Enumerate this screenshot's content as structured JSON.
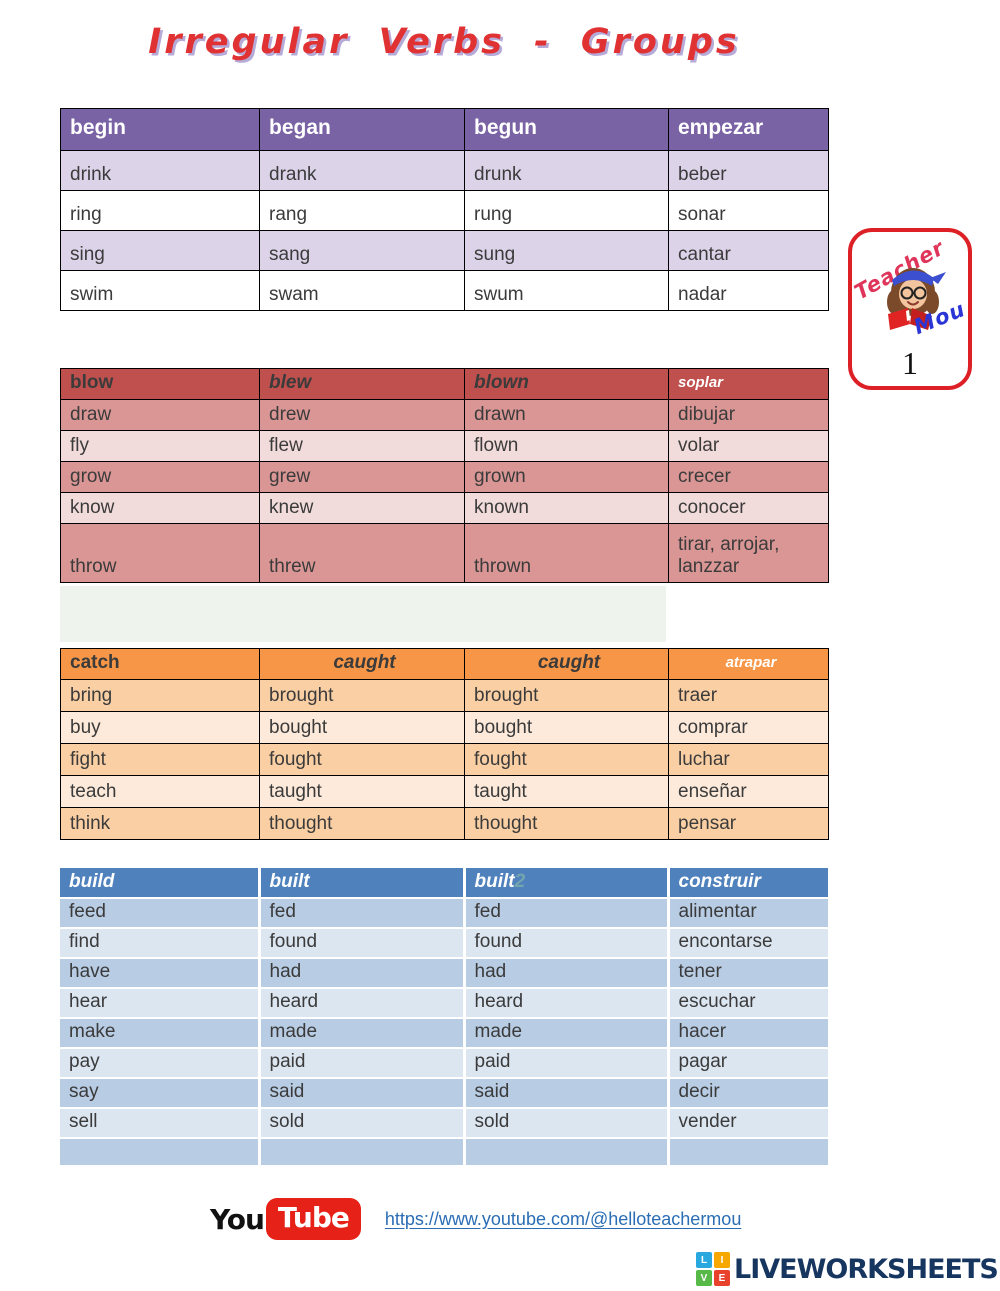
{
  "title": "Irregular Verbs - Groups",
  "badge": {
    "word_top": "Teacher",
    "word_bottom": "Mou",
    "number": "1"
  },
  "tables": [
    {
      "id": "group-1",
      "header": [
        "begin",
        "began",
        "begun",
        "empezar"
      ],
      "rows": [
        [
          "drink",
          "drank",
          "drunk",
          "beber"
        ],
        [
          "ring",
          "rang",
          "rung",
          "sonar"
        ],
        [
          "sing",
          "sang",
          "sung",
          "cantar"
        ],
        [
          "swim",
          "swam",
          "swum",
          "nadar"
        ]
      ],
      "colors": {
        "header_bg": "#7a63a5",
        "header_text": "#ffffff",
        "row_a": "#dcd3e9",
        "row_b": "#ffffff"
      }
    },
    {
      "id": "group-2",
      "header": [
        "blow",
        "blew",
        "blown",
        "soplar"
      ],
      "rows": [
        [
          "draw",
          "drew",
          "drawn",
          "dibujar"
        ],
        [
          "fly",
          "flew",
          "flown",
          "volar"
        ],
        [
          "grow",
          "grew",
          "grown",
          "crecer"
        ],
        [
          "know",
          "knew",
          "known",
          "conocer"
        ],
        [
          "throw",
          "threw",
          "thrown",
          "tirar, arrojar, lanzzar"
        ]
      ],
      "colors": {
        "header_bg": "#c0504d",
        "header_text": "#3b3b3b",
        "row_a": "#d99694",
        "row_b": "#f2dcdb"
      }
    },
    {
      "id": "group-3",
      "header": [
        "catch",
        "caught",
        "caught",
        "atrapar"
      ],
      "rows": [
        [
          "bring",
          "brought",
          "brought",
          "traer"
        ],
        [
          "buy",
          "bought",
          "bought",
          "comprar"
        ],
        [
          "fight",
          "fought",
          "fought",
          "luchar"
        ],
        [
          "teach",
          "taught",
          "taught",
          "enseñar"
        ],
        [
          "think",
          "thought",
          "thought",
          "pensar"
        ]
      ],
      "colors": {
        "header_bg": "#f79646",
        "header_text": "#3b3b3b",
        "row_a": "#fbcfa4",
        "row_b": "#fdeada"
      }
    },
    {
      "id": "group-4",
      "header": [
        "build",
        "built",
        "built",
        "construir"
      ],
      "header_suffix": {
        "col_index": 2,
        "text": "2"
      },
      "rows": [
        [
          "feed",
          "fed",
          "fed",
          "alimentar"
        ],
        [
          "find",
          "found",
          "found",
          "encontarse"
        ],
        [
          "have",
          "had",
          "had",
          "tener"
        ],
        [
          "hear",
          "heard",
          "heard",
          "escuchar"
        ],
        [
          "make",
          "made",
          "made",
          "hacer"
        ],
        [
          "pay",
          "paid",
          "paid",
          "pagar"
        ],
        [
          "say",
          "said",
          "said",
          "decir"
        ],
        [
          "sell",
          "sold",
          "sold",
          "vender"
        ],
        [
          "",
          "",
          "",
          ""
        ]
      ],
      "colors": {
        "header_bg": "#4f81bd",
        "header_text": "#ffffff",
        "row_a": "#b8cce4",
        "row_b": "#dce6f1"
      }
    }
  ],
  "footer": {
    "youtube": {
      "you": "You",
      "tube": "Tube"
    },
    "channel_link": "https://www.youtube.com/@helloteachermou",
    "liveworksheets": {
      "squares": [
        "L",
        "I",
        "V",
        "E"
      ],
      "square_colors": [
        "#29a8e0",
        "#f7a800",
        "#57b947",
        "#e8412c"
      ],
      "text": "LIVEWORKSHEETS"
    }
  }
}
